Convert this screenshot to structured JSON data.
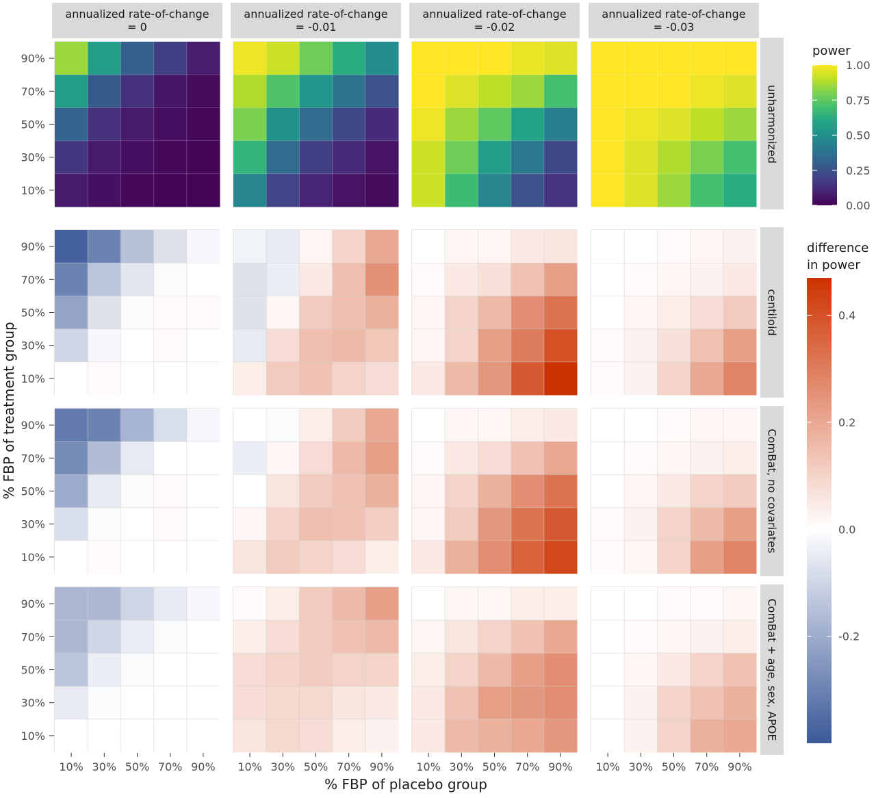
{
  "chart_data": {
    "type": "heatmap",
    "xlabel": "% FBP of placebo group",
    "ylabel": "% FBP of treatment group",
    "x_categories": [
      "10%",
      "30%",
      "50%",
      "70%",
      "90%"
    ],
    "y_categories": [
      "90%",
      "70%",
      "50%",
      "30%",
      "10%"
    ],
    "col_facets": [
      "annualized rate-of-change\n= 0",
      "annualized rate-of-change\n= -0.01",
      "annualized rate-of-change\n= -0.02",
      "annualized rate-of-change\n= -0.03"
    ],
    "row_facets": [
      "unharmonized",
      "centiloid",
      "ComBat, no covariates",
      "ComBat + age, sex, APOE"
    ],
    "legends": {
      "power": {
        "title": "power",
        "scale": "viridis",
        "range": [
          0,
          1
        ],
        "ticks": [
          "1.00",
          "0.75",
          "0.50",
          "0.25",
          "0.00"
        ],
        "tick_values": [
          1.0,
          0.75,
          0.5,
          0.25,
          0.0
        ]
      },
      "difference": {
        "title": "difference\nin power",
        "scale": "diverging",
        "low_color": "#3b5998",
        "mid_color": "#ffffff",
        "high_color": "#cc3300",
        "range": [
          -0.4,
          0.47
        ],
        "ticks": [
          "0.4",
          "0.2",
          "0.0",
          "-0.2"
        ],
        "tick_values": [
          0.4,
          0.2,
          0.0,
          -0.2
        ]
      }
    },
    "panels": [
      [
        {
          "values": [
            [
              0.85,
              0.55,
              0.3,
              0.18,
              0.08
            ],
            [
              0.55,
              0.28,
              0.14,
              0.06,
              0.03
            ],
            [
              0.32,
              0.14,
              0.07,
              0.04,
              0.02
            ],
            [
              0.16,
              0.07,
              0.04,
              0.02,
              0.01
            ],
            [
              0.07,
              0.04,
              0.02,
              0.01,
              0.01
            ]
          ]
        },
        {
          "values": [
            [
              0.98,
              0.92,
              0.78,
              0.62,
              0.48
            ],
            [
              0.88,
              0.72,
              0.52,
              0.38,
              0.25
            ],
            [
              0.8,
              0.5,
              0.35,
              0.22,
              0.12
            ],
            [
              0.65,
              0.35,
              0.18,
              0.12,
              0.05
            ],
            [
              0.45,
              0.2,
              0.1,
              0.05,
              0.03
            ]
          ]
        },
        {
          "values": [
            [
              1.0,
              1.0,
              1.0,
              0.97,
              0.95
            ],
            [
              1.0,
              0.95,
              0.9,
              0.85,
              0.7
            ],
            [
              0.98,
              0.85,
              0.75,
              0.58,
              0.42
            ],
            [
              0.92,
              0.78,
              0.55,
              0.4,
              0.22
            ],
            [
              0.92,
              0.68,
              0.45,
              0.25,
              0.15
            ]
          ]
        },
        {
          "values": [
            [
              1.0,
              1.0,
              1.0,
              1.0,
              1.0
            ],
            [
              1.0,
              1.0,
              1.0,
              0.98,
              0.95
            ],
            [
              1.0,
              0.98,
              0.95,
              0.9,
              0.85
            ],
            [
              1.0,
              0.95,
              0.88,
              0.8,
              0.7
            ],
            [
              1.0,
              0.95,
              0.85,
              0.7,
              0.62
            ]
          ]
        }
      ],
      [
        {
          "values": [
            [
              -0.38,
              -0.3,
              -0.15,
              -0.07,
              -0.02
            ],
            [
              -0.3,
              -0.14,
              -0.06,
              -0.01,
              0.0
            ],
            [
              -0.22,
              -0.07,
              -0.01,
              0.01,
              0.01
            ],
            [
              -0.1,
              -0.02,
              0.0,
              0.01,
              0.0
            ],
            [
              0.0,
              0.01,
              0.0,
              0.0,
              0.0
            ]
          ]
        },
        {
          "values": [
            [
              -0.03,
              -0.05,
              0.02,
              0.1,
              0.2
            ],
            [
              -0.07,
              -0.04,
              0.05,
              0.15,
              0.25
            ],
            [
              -0.07,
              0.02,
              0.12,
              0.15,
              0.18
            ],
            [
              -0.05,
              0.08,
              0.15,
              0.16,
              0.13
            ],
            [
              0.04,
              0.12,
              0.14,
              0.1,
              0.08
            ]
          ]
        },
        {
          "values": [
            [
              0.0,
              0.02,
              0.02,
              0.05,
              0.06
            ],
            [
              0.01,
              0.05,
              0.07,
              0.14,
              0.22
            ],
            [
              0.02,
              0.1,
              0.16,
              0.26,
              0.32
            ],
            [
              0.02,
              0.1,
              0.22,
              0.3,
              0.4
            ],
            [
              0.05,
              0.16,
              0.24,
              0.38,
              0.47
            ]
          ]
        },
        {
          "values": [
            [
              0.0,
              0.0,
              0.01,
              0.02,
              0.03
            ],
            [
              0.0,
              0.01,
              0.02,
              0.03,
              0.05
            ],
            [
              0.0,
              0.02,
              0.04,
              0.08,
              0.12
            ],
            [
              0.01,
              0.03,
              0.07,
              0.14,
              0.22
            ],
            [
              0.01,
              0.03,
              0.1,
              0.2,
              0.28
            ]
          ]
        }
      ],
      [
        {
          "values": [
            [
              -0.32,
              -0.3,
              -0.18,
              -0.08,
              -0.02
            ],
            [
              -0.28,
              -0.16,
              -0.05,
              0.0,
              0.0
            ],
            [
              -0.2,
              -0.05,
              -0.01,
              0.01,
              0.0
            ],
            [
              -0.08,
              -0.01,
              0.0,
              0.01,
              0.0
            ],
            [
              0.0,
              0.01,
              0.0,
              0.0,
              0.0
            ]
          ]
        },
        {
          "values": [
            [
              0.0,
              -0.01,
              0.04,
              0.12,
              0.2
            ],
            [
              -0.04,
              0.02,
              0.08,
              0.16,
              0.22
            ],
            [
              0.0,
              0.06,
              0.12,
              0.14,
              0.18
            ],
            [
              0.02,
              0.1,
              0.15,
              0.14,
              0.11
            ],
            [
              0.06,
              0.12,
              0.1,
              0.08,
              0.04
            ]
          ]
        },
        {
          "values": [
            [
              0.0,
              0.02,
              0.02,
              0.04,
              0.05
            ],
            [
              0.01,
              0.05,
              0.08,
              0.14,
              0.2
            ],
            [
              0.02,
              0.1,
              0.18,
              0.26,
              0.32
            ],
            [
              0.02,
              0.12,
              0.24,
              0.32,
              0.38
            ],
            [
              0.05,
              0.18,
              0.26,
              0.36,
              0.42
            ]
          ]
        },
        {
          "values": [
            [
              0.0,
              0.0,
              0.01,
              0.02,
              0.02
            ],
            [
              0.0,
              0.01,
              0.02,
              0.03,
              0.04
            ],
            [
              0.0,
              0.02,
              0.05,
              0.1,
              0.12
            ],
            [
              0.01,
              0.03,
              0.1,
              0.16,
              0.22
            ],
            [
              0.01,
              0.02,
              0.1,
              0.22,
              0.28
            ]
          ]
        }
      ],
      [
        {
          "values": [
            [
              -0.17,
              -0.17,
              -0.1,
              -0.05,
              -0.02
            ],
            [
              -0.17,
              -0.1,
              -0.04,
              -0.01,
              0.0
            ],
            [
              -0.14,
              -0.04,
              -0.01,
              0.0,
              0.0
            ],
            [
              -0.05,
              -0.01,
              0.0,
              0.0,
              0.0
            ],
            [
              0.0,
              0.0,
              0.0,
              0.0,
              0.0
            ]
          ]
        },
        {
          "values": [
            [
              0.01,
              0.04,
              0.12,
              0.16,
              0.22
            ],
            [
              0.04,
              0.08,
              0.12,
              0.14,
              0.16
            ],
            [
              0.08,
              0.1,
              0.12,
              0.1,
              0.1
            ],
            [
              0.08,
              0.09,
              0.09,
              0.06,
              0.05
            ],
            [
              0.06,
              0.09,
              0.08,
              0.04,
              0.03
            ]
          ]
        },
        {
          "values": [
            [
              0.0,
              0.02,
              0.02,
              0.04,
              0.04
            ],
            [
              0.02,
              0.06,
              0.1,
              0.14,
              0.2
            ],
            [
              0.04,
              0.1,
              0.16,
              0.22,
              0.26
            ],
            [
              0.05,
              0.14,
              0.22,
              0.24,
              0.26
            ],
            [
              0.05,
              0.16,
              0.18,
              0.2,
              0.24
            ]
          ]
        },
        {
          "values": [
            [
              0.0,
              0.0,
              0.01,
              0.01,
              0.02
            ],
            [
              0.0,
              0.01,
              0.02,
              0.03,
              0.04
            ],
            [
              0.0,
              0.02,
              0.05,
              0.1,
              0.14
            ],
            [
              0.0,
              0.03,
              0.1,
              0.14,
              0.18
            ],
            [
              0.0,
              0.03,
              0.1,
              0.18,
              0.2
            ]
          ]
        }
      ]
    ]
  }
}
